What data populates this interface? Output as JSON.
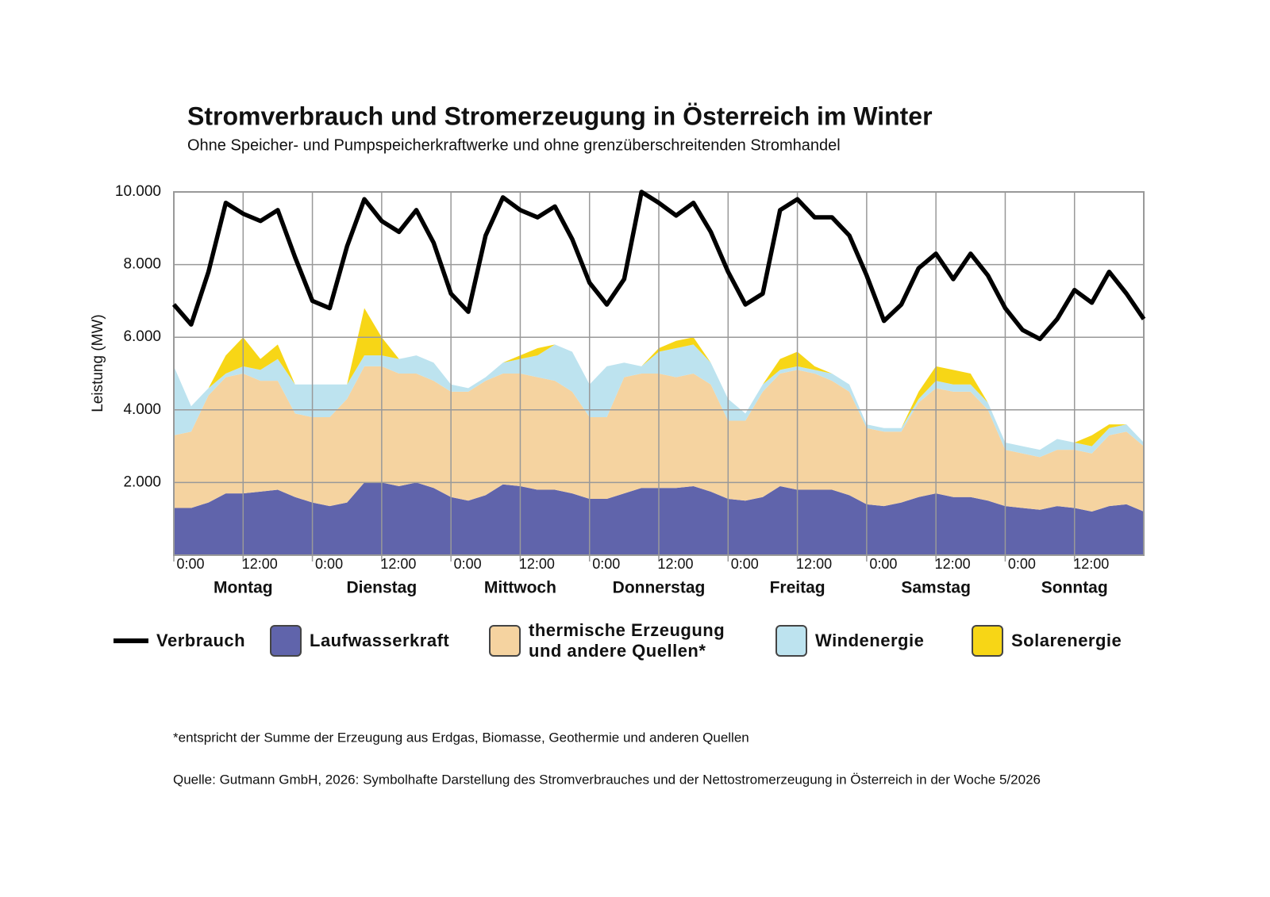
{
  "chart_data": {
    "type": "stacked-area",
    "title": "Stromverbrauch und Stromerzeugung in Österreich im Winter",
    "subtitle": "Ohne Speicher- und Pumpspeicherkraftwerke und ohne grenzüberschreitenden Stromhandel",
    "y_label": "Leistung (MW)",
    "x": [
      0,
      3,
      6,
      9,
      12,
      15,
      18,
      21,
      24,
      27,
      30,
      33,
      36,
      39,
      42,
      45,
      48,
      51,
      54,
      57,
      60,
      63,
      66,
      69,
      72,
      75,
      78,
      81,
      84,
      87,
      90,
      93,
      96,
      99,
      102,
      105,
      108,
      111,
      114,
      117,
      120,
      123,
      126,
      129,
      132,
      135,
      138,
      141,
      144,
      147,
      150,
      153,
      156,
      159,
      162,
      165,
      168
    ],
    "xlim": [
      0,
      168
    ],
    "xticks": [
      {
        "value": 0,
        "label": "0:00"
      },
      {
        "value": 12,
        "label": "12:00"
      },
      {
        "value": 24,
        "label": "0:00"
      },
      {
        "value": 36,
        "label": "12:00"
      },
      {
        "value": 48,
        "label": "0:00"
      },
      {
        "value": 60,
        "label": "12:00"
      },
      {
        "value": 72,
        "label": "0:00"
      },
      {
        "value": 84,
        "label": "12:00"
      },
      {
        "value": 96,
        "label": "0:00"
      },
      {
        "value": 108,
        "label": "12:00"
      },
      {
        "value": 120,
        "label": "0:00"
      },
      {
        "value": 132,
        "label": "12:00"
      },
      {
        "value": 144,
        "label": "0:00"
      },
      {
        "value": 156,
        "label": "12:00"
      }
    ],
    "days": [
      "Montag",
      "Dienstag",
      "Mittwoch",
      "Donnerstag",
      "Freitag",
      "Samstag",
      "Sonntag"
    ],
    "ylim": [
      0,
      10000
    ],
    "yticks": [
      {
        "value": 2000,
        "label": "2.000"
      },
      {
        "value": 4000,
        "label": "4.000"
      },
      {
        "value": 6000,
        "label": "6.000"
      },
      {
        "value": 8000,
        "label": "8.000"
      },
      {
        "value": 10000,
        "label": "10.000"
      }
    ],
    "grid": true,
    "series": [
      {
        "name": "Verbrauch",
        "kind": "line",
        "color": "#000000",
        "values": [
          6900,
          6350,
          7800,
          9700,
          9400,
          9200,
          9500,
          8200,
          7000,
          6800,
          8500,
          9800,
          9200,
          8900,
          9500,
          8600,
          7200,
          6700,
          8800,
          9850,
          9500,
          9300,
          9600,
          8700,
          7500,
          6900,
          7600,
          10000,
          9700,
          9350,
          9700,
          8900,
          7800,
          6900,
          7200,
          9500,
          9800,
          9300,
          9300,
          8800,
          7700,
          6450,
          6900,
          7900,
          8300,
          7600,
          8300,
          7700,
          6800,
          6200,
          5950,
          6500,
          7300,
          6950,
          7800,
          7200,
          6500
        ]
      },
      {
        "name": "Laufwasserkraft",
        "kind": "area",
        "color": "#6064ab",
        "values": [
          1300,
          1300,
          1450,
          1700,
          1700,
          1750,
          1800,
          1600,
          1450,
          1350,
          1450,
          2000,
          2000,
          1900,
          2000,
          1850,
          1600,
          1500,
          1650,
          1950,
          1900,
          1800,
          1800,
          1700,
          1550,
          1550,
          1700,
          1850,
          1850,
          1850,
          1900,
          1750,
          1550,
          1500,
          1600,
          1900,
          1800,
          1800,
          1800,
          1650,
          1400,
          1350,
          1450,
          1600,
          1700,
          1600,
          1600,
          1500,
          1350,
          1300,
          1250,
          1350,
          1300,
          1200,
          1350,
          1400,
          1200
        ]
      },
      {
        "name": "thermische Erzeugung und andere Quellen*",
        "kind": "area",
        "color": "#f5d3a0",
        "values": [
          2000,
          2100,
          2950,
          3200,
          3300,
          3050,
          3000,
          2300,
          2350,
          2450,
          2850,
          3200,
          3200,
          3100,
          3000,
          2950,
          2900,
          3000,
          3150,
          3050,
          3100,
          3100,
          3000,
          2800,
          2250,
          2250,
          3200,
          3150,
          3150,
          3050,
          3100,
          2950,
          2150,
          2200,
          2900,
          3100,
          3300,
          3200,
          3000,
          2850,
          2100,
          2050,
          1950,
          2600,
          2900,
          2900,
          2900,
          2500,
          1550,
          1500,
          1450,
          1550,
          1600,
          1600,
          1950,
          2000,
          1800
        ]
      },
      {
        "name": "Windenergie",
        "kind": "area",
        "color": "#bde3ef",
        "values": [
          1900,
          700,
          200,
          100,
          200,
          300,
          600,
          800,
          900,
          900,
          400,
          300,
          300,
          400,
          500,
          500,
          200,
          100,
          100,
          300,
          400,
          600,
          1000,
          1100,
          900,
          1400,
          400,
          200,
          600,
          800,
          800,
          600,
          600,
          200,
          200,
          100,
          100,
          100,
          200,
          200,
          100,
          100,
          100,
          100,
          200,
          200,
          200,
          200,
          200,
          200,
          200,
          300,
          200,
          200,
          200,
          200,
          100
        ]
      },
      {
        "name": "Solarenergie",
        "kind": "area",
        "color": "#f7d616",
        "values": [
          0,
          0,
          0,
          500,
          800,
          300,
          400,
          0,
          0,
          0,
          0,
          1300,
          500,
          0,
          0,
          0,
          0,
          0,
          0,
          0,
          100,
          200,
          0,
          0,
          0,
          0,
          0,
          0,
          100,
          200,
          200,
          0,
          0,
          0,
          0,
          300,
          400,
          100,
          0,
          0,
          0,
          0,
          0,
          200,
          400,
          400,
          300,
          0,
          0,
          0,
          0,
          0,
          0,
          300,
          100,
          0,
          0
        ]
      }
    ],
    "footnote": "*entspricht der Summe der Erzeugung aus Erdgas, Biomasse, Geothermie und anderen Quellen",
    "source": "Quelle: Gutmann GmbH, 2026: Symbolhafte Darstellung des Stromverbrauches und der Nettostromerzeugung in Österreich in der Woche 5/2026"
  }
}
